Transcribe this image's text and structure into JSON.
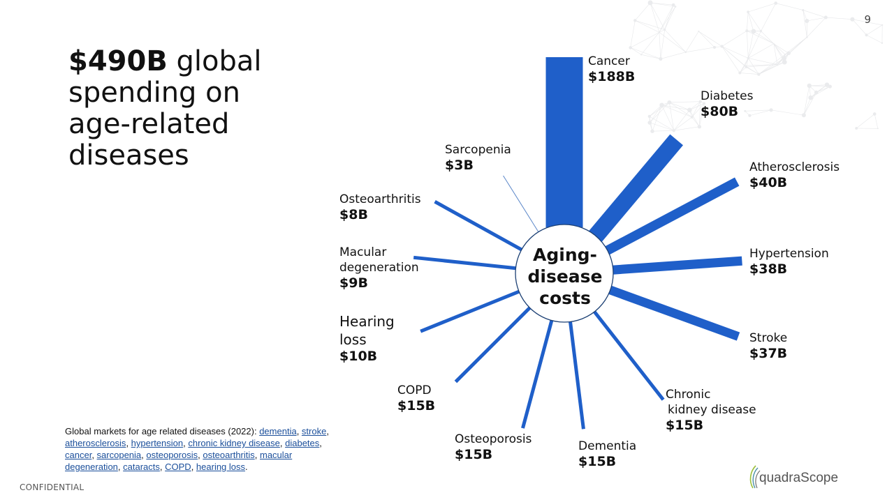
{
  "page": {
    "number": "9",
    "confidential": "CONFIDENTIAL"
  },
  "headline": {
    "bold": "$490B",
    "rest": " global spending on age-related diseases"
  },
  "center_label": {
    "line1": "Aging-",
    "line2": "disease",
    "line3": "costs"
  },
  "colors": {
    "bar": "#1f5fc9",
    "thin_line": "#5a86c8",
    "circle_stroke": "#1b3f73"
  },
  "source": {
    "prefix": "Global markets for age related diseases (2022): ",
    "links": [
      "dementia",
      "stroke",
      "atherosclerosis",
      "hypertension",
      "chronic kidney disease",
      "diabetes",
      "cancer",
      "sarcopenia",
      "osteoporosis",
      "osteoarthritis",
      "macular degeneration",
      "cataracts",
      "COPD",
      "hearing loss"
    ],
    "suffix": "."
  },
  "logo": {
    "text": "quadraScope"
  },
  "chart_data": {
    "type": "radial-bar",
    "title": "",
    "series": [
      {
        "name": "Cancer",
        "value": 188,
        "value_label": "$188B"
      },
      {
        "name": "Diabetes",
        "value": 80,
        "value_label": "$80B"
      },
      {
        "name": "Atherosclerosis",
        "value": 40,
        "value_label": "$40B"
      },
      {
        "name": "Hypertension",
        "value": 38,
        "value_label": "$38B"
      },
      {
        "name": "Stroke",
        "value": 37,
        "value_label": "$37B"
      },
      {
        "name": "Chronic kidney disease",
        "value": 15,
        "value_label": "$15B"
      },
      {
        "name": "Dementia",
        "value": 15,
        "value_label": "$15B"
      },
      {
        "name": "Osteoporosis",
        "value": 15,
        "value_label": "$15B"
      },
      {
        "name": "COPD",
        "value": 15,
        "value_label": "$15B"
      },
      {
        "name": "Hearing loss",
        "value": 10,
        "value_label": "$10B"
      },
      {
        "name": "Macular degeneration",
        "value": 9,
        "value_label": "$9B"
      },
      {
        "name": "Osteoarthritis",
        "value": 8,
        "value_label": "$8B"
      },
      {
        "name": "Sarcopenia",
        "value": 3,
        "value_label": "$3B"
      }
    ],
    "label_names": {
      "Cancer": [
        "Cancer"
      ],
      "Diabetes": [
        "Diabetes"
      ],
      "Atherosclerosis": [
        "Atherosclerosis"
      ],
      "Hypertension": [
        "Hypertension"
      ],
      "Stroke": [
        "Stroke"
      ],
      "Chronic kidney disease": [
        "Chronic",
        " kidney disease"
      ],
      "Dementia": [
        "Dementia"
      ],
      "Osteoporosis": [
        "Osteoporosis"
      ],
      "COPD": [
        "COPD"
      ],
      "Hearing loss": [
        "Hearing",
        "loss"
      ],
      "Macular degeneration": [
        "Macular",
        "degeneration"
      ],
      "Osteoarthritis": [
        "Osteoarthritis"
      ],
      "Sarcopenia": [
        "Sarcopenia"
      ]
    },
    "unit": "USD billions",
    "year": "2022"
  }
}
